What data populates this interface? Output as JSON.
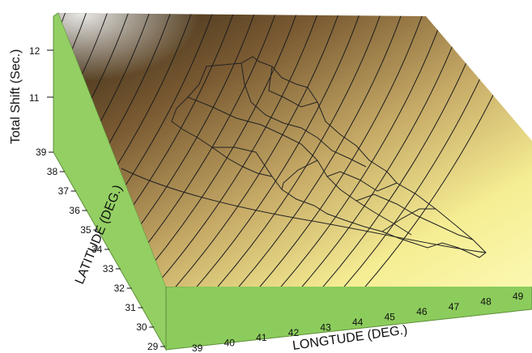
{
  "chart_data": {
    "type": "surface-3d",
    "title": "",
    "zlabel": "Total Shift (Sec.)",
    "ylabel": "LATITUDE (DEG.)",
    "xlabel": "LONGTUDE (DEG.)",
    "x_ticks": [
      "39",
      "40",
      "41",
      "42",
      "43",
      "44",
      "45",
      "46",
      "47",
      "48",
      "49"
    ],
    "y_ticks": [
      "29",
      "30",
      "31",
      "32",
      "33",
      "34",
      "35",
      "36",
      "37",
      "38",
      "39"
    ],
    "z_ticks": [
      "11",
      "12"
    ],
    "xlim": [
      39,
      49
    ],
    "ylim": [
      29,
      39
    ],
    "z_range_approx": [
      10.2,
      12.5
    ],
    "contour_count_approx": 24,
    "overlay": "country and province boundaries",
    "colors": {
      "side_walls": "#93cf63",
      "surface_low": "#fbf7a0",
      "surface_high": "#3e3012",
      "contour_lines": "#1c1c1c"
    }
  }
}
